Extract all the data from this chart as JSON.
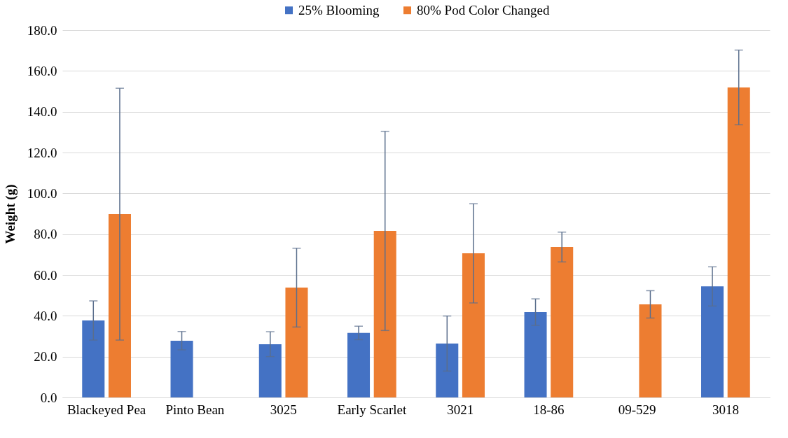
{
  "chart_data": {
    "type": "bar",
    "ylabel": "Weight (g)",
    "categories": [
      "Blackeyed Pea",
      "Pinto Bean",
      "3025",
      "Early Scarlet",
      "3021",
      "18-86",
      "09-529",
      "3018"
    ],
    "series": [
      {
        "name": "25% Blooming",
        "color": "#4472c4",
        "values": [
          37.7,
          27.8,
          26.1,
          31.6,
          26.4,
          41.8,
          null,
          54.4
        ],
        "errors": [
          9.6,
          4.5,
          6.1,
          3.3,
          13.5,
          6.5,
          null,
          9.6
        ]
      },
      {
        "name": "80% Pod Color Changed",
        "color": "#ed7d31",
        "values": [
          89.8,
          null,
          53.8,
          81.6,
          70.6,
          73.7,
          45.6,
          151.9
        ],
        "errors": [
          61.7,
          null,
          19.3,
          48.8,
          24.3,
          7.3,
          6.7,
          18.3
        ]
      }
    ],
    "ylim": [
      0,
      180
    ],
    "yticks": [
      {
        "value": 0,
        "label": "0.0"
      },
      {
        "value": 20,
        "label": "20.0"
      },
      {
        "value": 40,
        "label": "40.0"
      },
      {
        "value": 60,
        "label": "60.0"
      },
      {
        "value": 80,
        "label": "80.0"
      },
      {
        "value": 100,
        "label": "100.0"
      },
      {
        "value": 120,
        "label": "120.0"
      },
      {
        "value": 140,
        "label": "140.0"
      },
      {
        "value": 160,
        "label": "160.0"
      },
      {
        "value": 180,
        "label": "180.0"
      }
    ],
    "grid": "y",
    "legend": "top"
  }
}
